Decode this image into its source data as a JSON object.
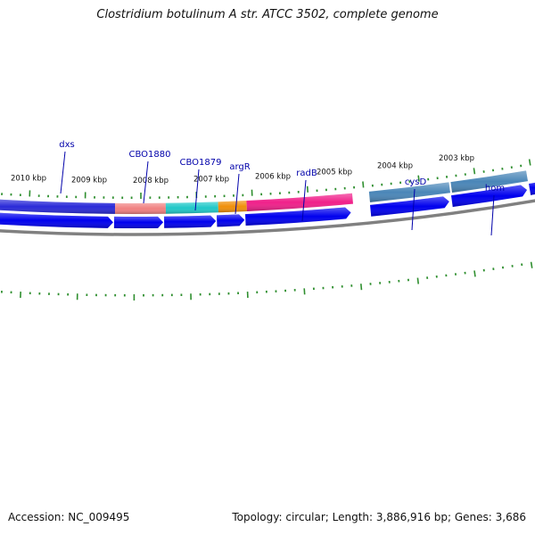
{
  "title": "Clostridium botulinum A str. ATCC 3502, complete genome",
  "footer": {
    "accession": "Accession: NC_009495",
    "summary": "Topology: circular; Length: 3,886,916 bp; Genes: 3,686"
  },
  "colors": {
    "tick": "#2f8f2f",
    "cds_arrow": "#0000ee",
    "backbone": "#808080",
    "gene_label": "#0000aa"
  },
  "ruler": {
    "labels": [
      "2010 kbp",
      "2009 kbp",
      "2008 kbp",
      "2007 kbp",
      "2006 kbp",
      "2005 kbp",
      "2004 kbp",
      "2003 kbp"
    ]
  },
  "gene_labels": [
    "dxs",
    "CBO1880",
    "CBO1879",
    "argR",
    "radB",
    "cysD",
    "hom"
  ],
  "features": [
    {
      "name": "dxs",
      "color": "#2a2ad8"
    },
    {
      "name": "CBO1880",
      "color": "#f08080"
    },
    {
      "name": "CBO1879",
      "color": "#20c8c8"
    },
    {
      "name": "argR",
      "color": "#f0900a"
    },
    {
      "name": "radB",
      "color": "#f0208a"
    },
    {
      "name": "cysD",
      "color": "#4a86b8"
    },
    {
      "name": "hom",
      "color": "#4a86b8"
    }
  ]
}
